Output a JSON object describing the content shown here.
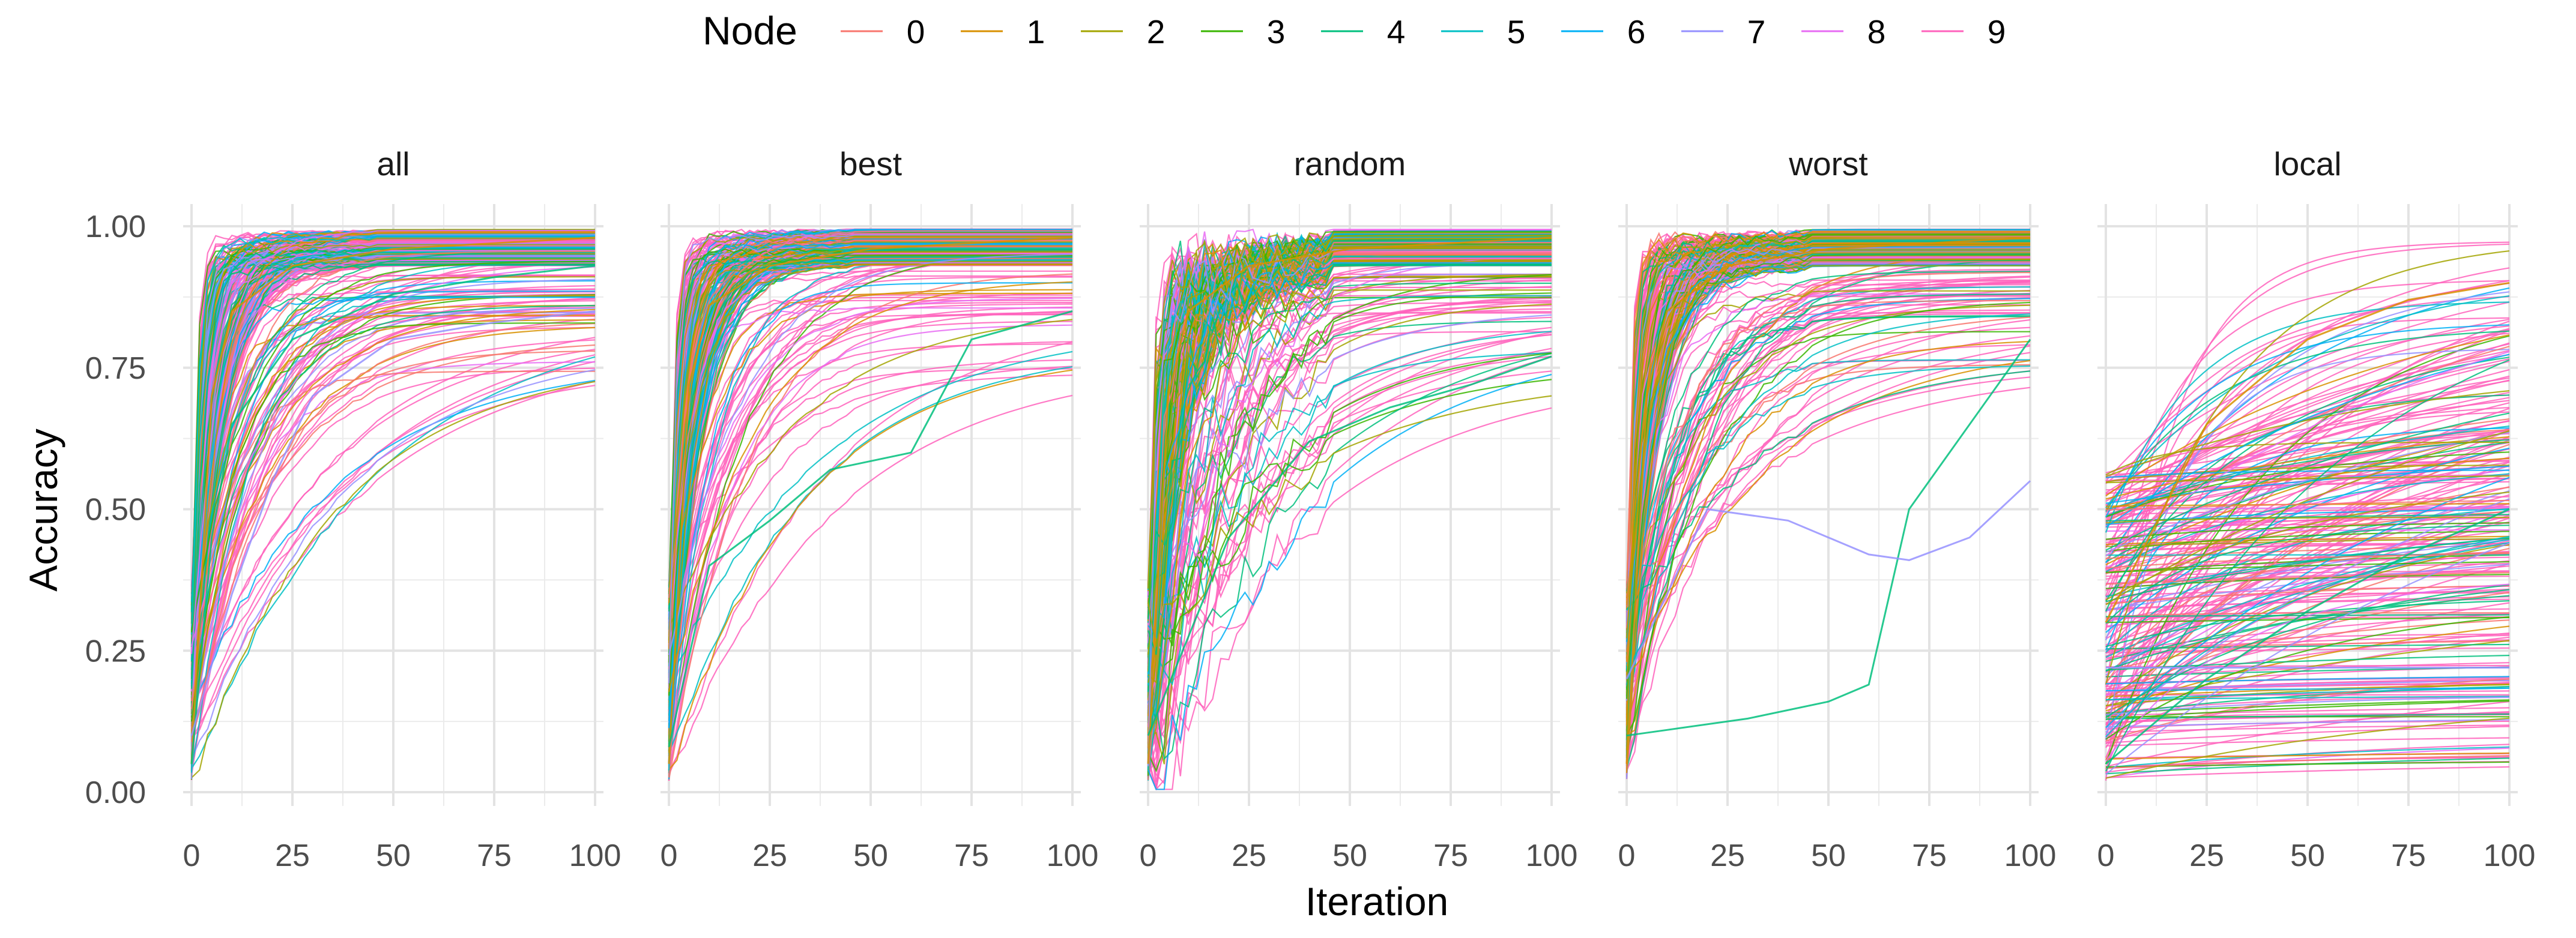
{
  "chart_data": {
    "type": "line",
    "title": "",
    "xlabel": "Iteration",
    "ylabel": "Accuracy",
    "xlim": [
      0,
      100
    ],
    "ylim": [
      0,
      1
    ],
    "x_ticks": [
      0,
      25,
      50,
      75,
      100
    ],
    "y_ticks": [
      0,
      0.25,
      0.5,
      0.75,
      1.0
    ],
    "x_tick_labels": [
      "0",
      "25",
      "50",
      "75",
      "100"
    ],
    "y_tick_labels": [
      "0.00",
      "0.25",
      "0.50",
      "0.75",
      "1.00"
    ],
    "grid": true,
    "legend": {
      "title": "Node",
      "position": "top",
      "entries": [
        "0",
        "1",
        "2",
        "3",
        "4",
        "5",
        "6",
        "7",
        "8",
        "9"
      ],
      "colors": [
        "#F8766D",
        "#D89000",
        "#A3A500",
        "#39B600",
        "#00BF7D",
        "#00BFC4",
        "#00B0F6",
        "#9590FF",
        "#E76BF3",
        "#FF62BC"
      ]
    },
    "facets": [
      "all",
      "best",
      "random",
      "worst",
      "local"
    ],
    "representative_series": {
      "all": [
        {
          "x": [
            0,
            5,
            10,
            25,
            50,
            75,
            100
          ],
          "y": [
            0.05,
            0.7,
            0.85,
            0.93,
            0.96,
            0.97,
            0.98
          ]
        },
        {
          "x": [
            0,
            5,
            10,
            25,
            50,
            75,
            100
          ],
          "y": [
            0.05,
            0.45,
            0.65,
            0.8,
            0.88,
            0.91,
            0.93
          ]
        },
        {
          "x": [
            0,
            10,
            20,
            30,
            50,
            75,
            100
          ],
          "y": [
            0.1,
            0.35,
            0.55,
            0.7,
            0.8,
            0.83,
            0.85
          ]
        }
      ],
      "best": [
        {
          "x": [
            0,
            5,
            10,
            25,
            50,
            75,
            100
          ],
          "y": [
            0.05,
            0.72,
            0.86,
            0.93,
            0.96,
            0.97,
            0.98
          ]
        },
        {
          "x": [
            0,
            10,
            25,
            40,
            60,
            75,
            100
          ],
          "y": [
            0.08,
            0.4,
            0.48,
            0.57,
            0.6,
            0.8,
            0.85
          ]
        }
      ],
      "random": [
        {
          "x": [
            0,
            5,
            10,
            25,
            50,
            75,
            100
          ],
          "y": [
            0.05,
            0.7,
            0.85,
            0.93,
            0.96,
            0.97,
            0.98
          ]
        },
        {
          "x": [
            0,
            20,
            40,
            50,
            60,
            80,
            100
          ],
          "y": [
            0.1,
            0.45,
            0.62,
            0.65,
            0.68,
            0.72,
            0.77
          ]
        }
      ],
      "worst": [
        {
          "x": [
            0,
            5,
            10,
            25,
            50,
            75,
            100
          ],
          "y": [
            0.05,
            0.7,
            0.85,
            0.93,
            0.96,
            0.97,
            0.98
          ]
        },
        {
          "x": [
            0,
            10,
            30,
            50,
            60,
            70,
            100
          ],
          "y": [
            0.1,
            0.11,
            0.13,
            0.16,
            0.19,
            0.5,
            0.8
          ]
        },
        {
          "x": [
            0,
            20,
            40,
            60,
            70,
            85,
            100
          ],
          "y": [
            0.2,
            0.5,
            0.48,
            0.42,
            0.41,
            0.45,
            0.55
          ]
        }
      ],
      "local": [
        {
          "x": [
            0,
            25,
            50,
            75,
            100
          ],
          "y": [
            0.3,
            0.65,
            0.8,
            0.87,
            0.9
          ]
        },
        {
          "x": [
            0,
            25,
            50,
            75,
            100
          ],
          "y": [
            0.05,
            0.2,
            0.32,
            0.42,
            0.5
          ]
        },
        {
          "x": [
            0,
            100
          ],
          "y": [
            0.22,
            0.22
          ]
        }
      ]
    }
  }
}
